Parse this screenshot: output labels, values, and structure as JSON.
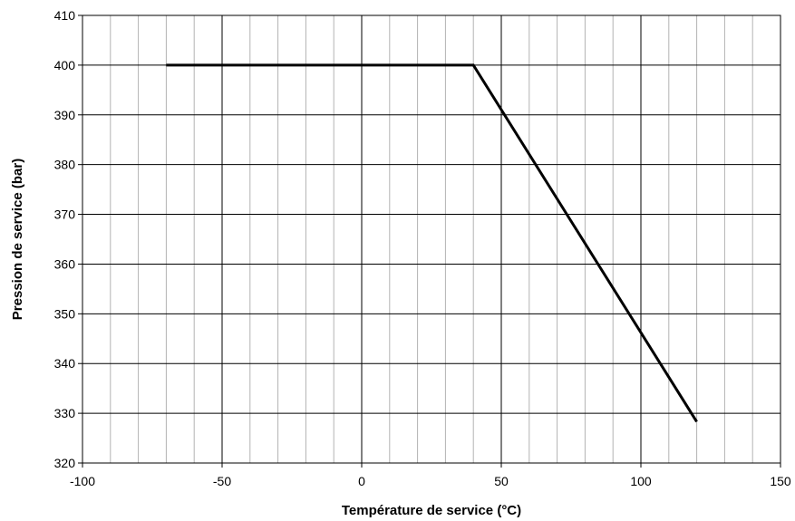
{
  "chart_data": {
    "type": "line",
    "title": "",
    "xlabel": "Température de service (°C)",
    "ylabel": "Pression de service (bar)",
    "xlim": [
      -100,
      150
    ],
    "ylim": [
      320,
      410
    ],
    "x_major_ticks": [
      -100,
      -50,
      0,
      50,
      100,
      150
    ],
    "x_minor_step": 10,
    "y_ticks": [
      320,
      330,
      340,
      350,
      360,
      370,
      380,
      390,
      400,
      410
    ],
    "x_tick_labels": [
      "-100",
      "-50",
      "0",
      "50",
      "100",
      "150"
    ],
    "y_tick_labels": [
      "320",
      "330",
      "340",
      "350",
      "360",
      "370",
      "380",
      "390",
      "400",
      "410"
    ],
    "grid": true,
    "series": [
      {
        "name": "",
        "color": "#000000",
        "points": [
          {
            "x": -70,
            "y": 400
          },
          {
            "x": 40,
            "y": 400
          },
          {
            "x": 120,
            "y": 328.3
          }
        ]
      }
    ]
  }
}
